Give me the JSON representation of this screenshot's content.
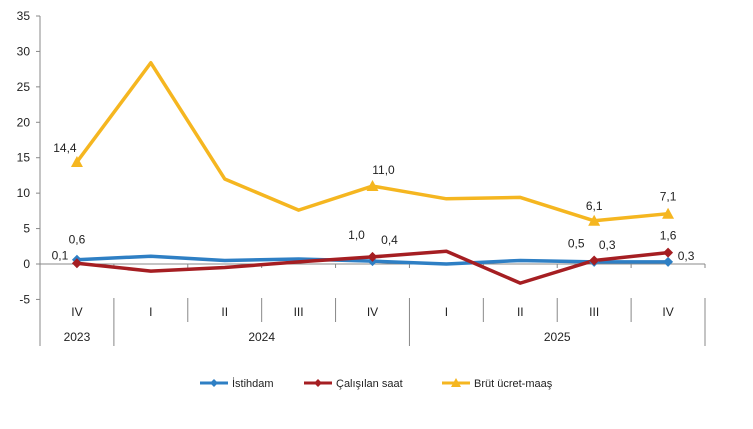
{
  "chart_data": {
    "type": "line",
    "categories": [
      "IV",
      "I",
      "II",
      "III",
      "IV",
      "I",
      "II",
      "III",
      "IV"
    ],
    "groups": [
      {
        "label": "2023",
        "span": 1
      },
      {
        "label": "2024",
        "span": 4
      },
      {
        "label": "2025",
        "span": 4
      }
    ],
    "ylim": [
      -5,
      35
    ],
    "yticks": [
      -5,
      0,
      5,
      10,
      15,
      20,
      25,
      30,
      35
    ],
    "grid": false,
    "legend": "bottom",
    "series": [
      {
        "name": "İstihdam",
        "color": "#2E7FC4",
        "marker": "diamond",
        "values": [
          0.6,
          1.1,
          0.5,
          0.7,
          0.4,
          0.0,
          0.5,
          0.3,
          0.3
        ],
        "labeled_indices": [
          0,
          4,
          7,
          8
        ]
      },
      {
        "name": "Çalışılan saat",
        "color": "#A51E22",
        "marker": "diamond",
        "values": [
          0.1,
          -1.0,
          -0.5,
          0.3,
          1.0,
          1.8,
          -2.7,
          0.5,
          1.6
        ],
        "labeled_indices": [
          0,
          4,
          7,
          8
        ]
      },
      {
        "name": "Brüt ücret-maaş",
        "color": "#F5B620",
        "marker": "triangle",
        "values": [
          14.4,
          28.4,
          12.0,
          7.6,
          11.0,
          9.2,
          9.4,
          6.1,
          7.1
        ],
        "labeled_indices": [
          0,
          4,
          7,
          8
        ]
      }
    ]
  }
}
